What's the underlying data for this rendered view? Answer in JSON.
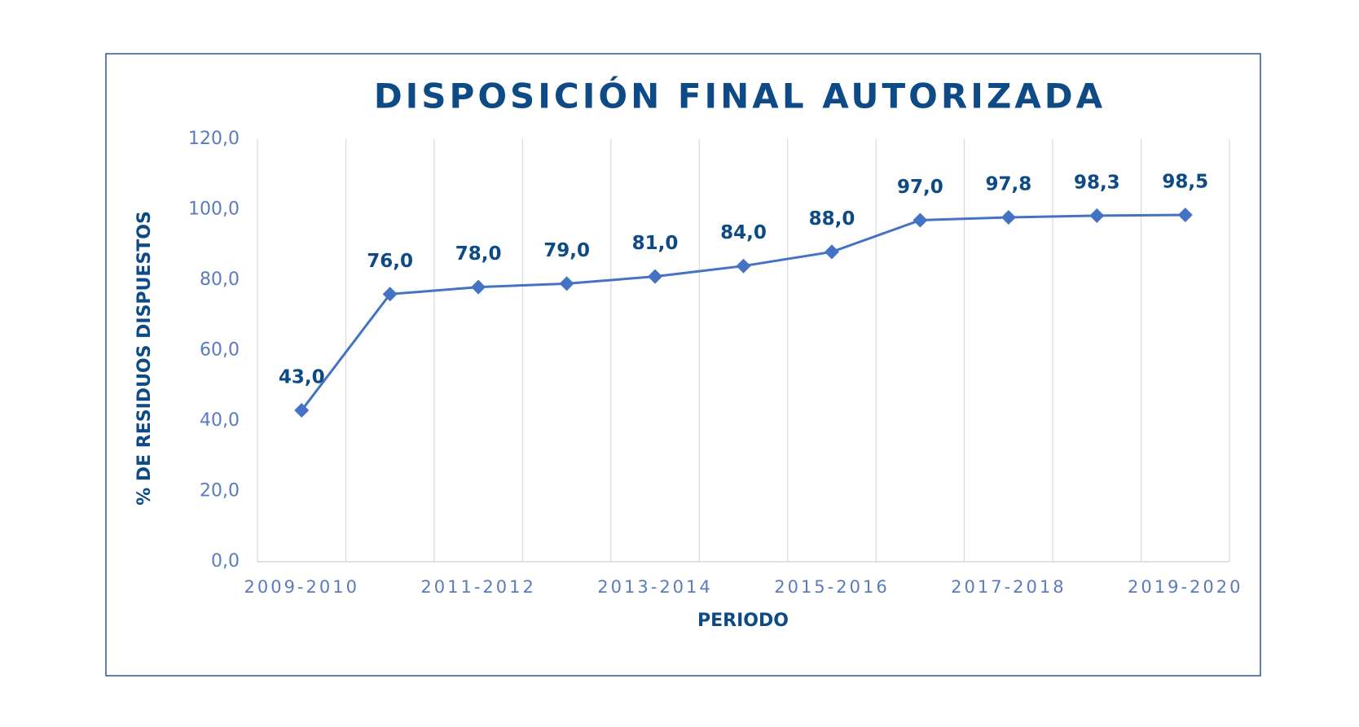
{
  "chart_data": {
    "type": "line",
    "title": "DISPOSICIÓN FINAL AUTORIZADA",
    "x_label": "PERIODO",
    "y_label": "% DE RESIDUOS DISPUESTOS",
    "categories": [
      "2009-2010",
      null,
      "2011-2012",
      null,
      "2013-2014",
      null,
      "2015-2016",
      null,
      "2017-2018",
      null,
      "2019-2020"
    ],
    "series": [
      {
        "name": "% de residuos dispuestos",
        "color": "#4472c4",
        "values": [
          43,
          76,
          78,
          79,
          81,
          84,
          88,
          97,
          97.8,
          98.3,
          98.5
        ],
        "value_labels": [
          "43,0",
          "76,0",
          "78,0",
          "79,0",
          "81,0",
          "84,0",
          "88,0",
          "97,0",
          "97,8",
          "98,3",
          "98,5"
        ]
      }
    ],
    "ylim": [
      0,
      120
    ],
    "yticks": [
      {
        "value": 0,
        "label": "0,0"
      },
      {
        "value": 20,
        "label": "20,0"
      },
      {
        "value": 40,
        "label": "40,0"
      },
      {
        "value": 60,
        "label": "60,0"
      },
      {
        "value": 80,
        "label": "80,0"
      },
      {
        "value": 100,
        "label": "100,0"
      },
      {
        "value": 120,
        "label": "120,0"
      }
    ],
    "grid": "x"
  }
}
